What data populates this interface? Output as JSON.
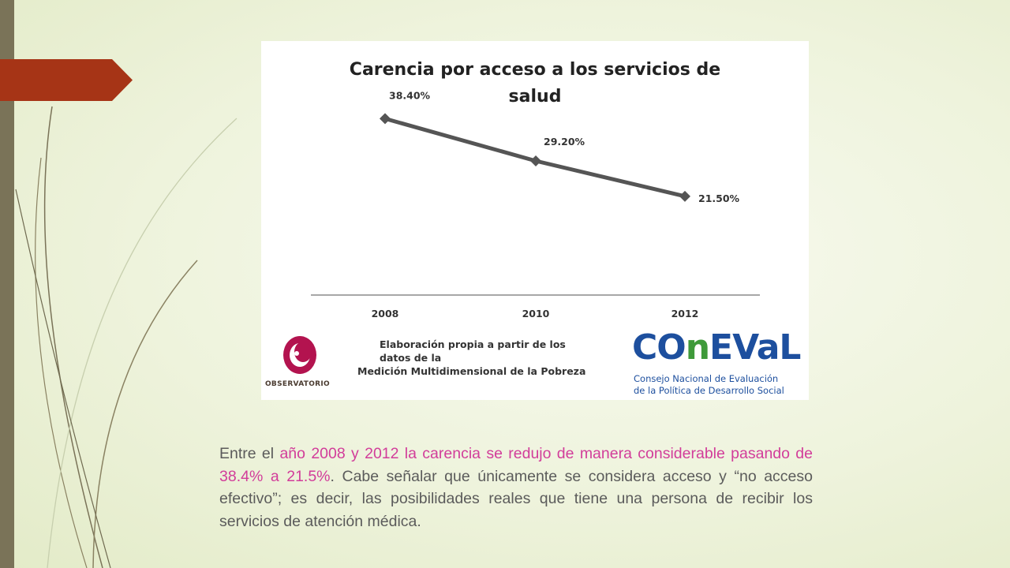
{
  "slide": {
    "colors": {
      "accent_red": "#a63416",
      "side_bar": "#7a7358",
      "highlight": "#d23d9a",
      "text": "#5b5b5b"
    }
  },
  "chart_data": {
    "type": "line",
    "title_lines": [
      "Carencia por acceso a los servicios de",
      "salud"
    ],
    "categories": [
      "2008",
      "2010",
      "2012"
    ],
    "series": [
      {
        "values": [
          38.4,
          29.2,
          21.5
        ]
      }
    ],
    "data_labels": [
      "38.40%",
      "29.20%",
      "21.50%"
    ],
    "ylim": [
      0,
      45
    ],
    "xlabel": "",
    "ylabel": "",
    "grid": false,
    "line_color": "#555555"
  },
  "source": {
    "line1": "Elaboración propia a partir de los",
    "line2": "datos de la",
    "line3": "Medición Multidimensional de la Pobreza"
  },
  "logos": {
    "observatorio": "OBSERVATORIO",
    "coneval_part1": "CO",
    "coneval_part2": "n",
    "coneval_part3": "EVaL",
    "coneval_sub1": "Consejo Nacional de Evaluación",
    "coneval_sub2": "de la Política de Desarrollo Social"
  },
  "body": {
    "t1": "Entre el ",
    "t2": "año 2008 y 2012 la carencia se redujo de manera considerable pasando de 38.4% a 21.5%",
    "t3": ". Cabe señalar que únicamente se considera acceso y “no acceso efectivo”; es decir, las posibilidades reales que tiene una persona de recibir los servicios de atención médica."
  }
}
